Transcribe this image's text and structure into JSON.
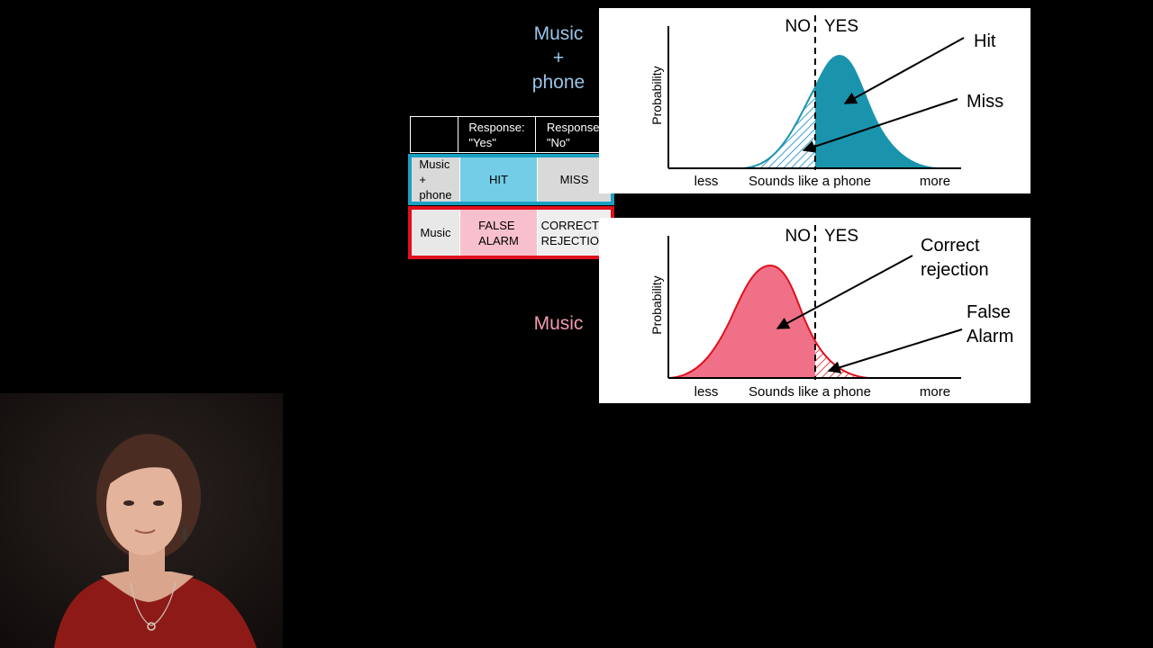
{
  "labels": {
    "music_phone": [
      "Music",
      "+",
      "phone"
    ],
    "music": "Music"
  },
  "table": {
    "header_yes": [
      "Response:",
      "\"Yes\""
    ],
    "header_no": [
      "Response:",
      "\"No\""
    ],
    "row1": {
      "label": [
        "Music",
        "+",
        "phone"
      ],
      "yes": "HIT",
      "no": "MISS"
    },
    "row2": {
      "label": "Music",
      "yes": [
        "FALSE",
        "ALARM"
      ],
      "no": [
        "CORRECT",
        "REJECTION"
      ]
    }
  },
  "chart_top": {
    "ylabel": "Probability",
    "x_left": "less",
    "x_mid": "Sounds like a phone",
    "x_right": "more",
    "no": "NO",
    "yes": "YES",
    "annot_hit": "Hit",
    "annot_miss": "Miss"
  },
  "chart_bottom": {
    "ylabel": "Probability",
    "x_left": "less",
    "x_mid": "Sounds like a phone",
    "x_right": "more",
    "no": "NO",
    "yes": "YES",
    "annot_cr": [
      "Correct",
      "rejection"
    ],
    "annot_fa": [
      "False",
      "Alarm"
    ]
  },
  "colors": {
    "music_phone": "#1a94ad",
    "music": "#f07088",
    "music_stroke": "#e0101c",
    "cell_hit": "#74cde6",
    "cell_fa": "#f8c0cc",
    "cell_grey": "#d9d9d9"
  }
}
